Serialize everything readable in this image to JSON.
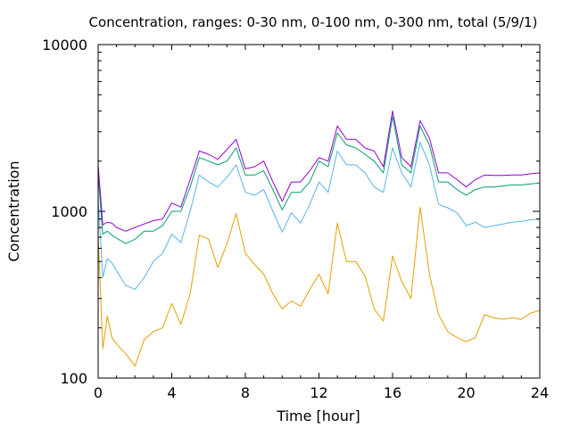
{
  "chart_data": {
    "type": "line",
    "title": "Concentration, ranges: 0-30 nm, 0-100 nm, 0-300 nm, total (5/9/1)",
    "xlabel": "Time [hour]",
    "ylabel": "Concentration",
    "xlim": [
      0,
      24
    ],
    "ylim": [
      100,
      10000
    ],
    "yscale": "log",
    "grid": false,
    "legend": "none",
    "x_ticks": [
      0,
      4,
      8,
      12,
      16,
      20,
      24
    ],
    "x_tick_labels": [
      "0",
      "4",
      "8",
      "12",
      "16",
      "20",
      "24"
    ],
    "y_ticks": [
      100,
      1000,
      10000
    ],
    "y_tick_labels": [
      "100",
      "1000",
      "10000"
    ],
    "x": [
      0,
      0.25,
      0.5,
      0.75,
      1,
      1.5,
      2,
      2.5,
      3,
      3.5,
      4,
      4.5,
      5,
      5.5,
      6,
      6.5,
      7,
      7.5,
      8,
      8.5,
      9,
      9.5,
      10,
      10.5,
      11,
      11.5,
      12,
      12.5,
      13,
      13.5,
      14,
      14.5,
      15,
      15.5,
      16,
      16.5,
      17,
      17.5,
      18,
      18.5,
      19,
      19.5,
      20,
      20.5,
      21,
      21.5,
      22,
      22.5,
      23,
      23.5,
      24
    ],
    "series": [
      {
        "color": "#e69f00",
        "values": [
          720,
          150,
          235,
          175,
          160,
          140,
          118,
          170,
          190,
          200,
          280,
          210,
          320,
          720,
          680,
          460,
          640,
          970,
          560,
          480,
          420,
          320,
          260,
          290,
          270,
          340,
          420,
          320,
          850,
          500,
          500,
          410,
          260,
          220,
          540,
          380,
          300,
          1060,
          420,
          240,
          190,
          175,
          165,
          175,
          240,
          230,
          225,
          230,
          225,
          245,
          255
        ]
      },
      {
        "color": "#56b4e9",
        "values": [
          1200,
          400,
          520,
          490,
          440,
          360,
          340,
          400,
          500,
          560,
          730,
          650,
          1000,
          1650,
          1500,
          1400,
          1600,
          1900,
          1300,
          1250,
          1350,
          1000,
          750,
          980,
          850,
          1100,
          1500,
          1300,
          2300,
          1900,
          1900,
          1700,
          1400,
          1300,
          2400,
          1700,
          1400,
          2600,
          1900,
          1100,
          1050,
          980,
          820,
          860,
          800,
          820,
          840,
          860,
          870,
          890,
          900
        ]
      },
      {
        "color": "#009e73",
        "values": [
          1650,
          730,
          760,
          720,
          690,
          640,
          680,
          760,
          760,
          820,
          1000,
          1000,
          1400,
          2100,
          2000,
          1900,
          2000,
          2400,
          1650,
          1650,
          1750,
          1350,
          1020,
          1300,
          1300,
          1500,
          2000,
          1850,
          2950,
          2500,
          2400,
          2200,
          2000,
          1700,
          3700,
          1900,
          1700,
          3250,
          2500,
          1500,
          1500,
          1350,
          1250,
          1350,
          1400,
          1400,
          1420,
          1440,
          1440,
          1460,
          1480
        ]
      },
      {
        "color": "#9400d3",
        "values": [
          1900,
          830,
          860,
          850,
          800,
          760,
          800,
          840,
          880,
          900,
          1120,
          1060,
          1550,
          2300,
          2200,
          2050,
          2350,
          2700,
          1800,
          1850,
          2000,
          1500,
          1150,
          1500,
          1500,
          1750,
          2100,
          2000,
          3250,
          2700,
          2700,
          2400,
          2300,
          1850,
          4000,
          2100,
          1850,
          3500,
          2750,
          1700,
          1700,
          1550,
          1400,
          1550,
          1650,
          1640,
          1640,
          1650,
          1650,
          1680,
          1700
        ]
      }
    ]
  }
}
